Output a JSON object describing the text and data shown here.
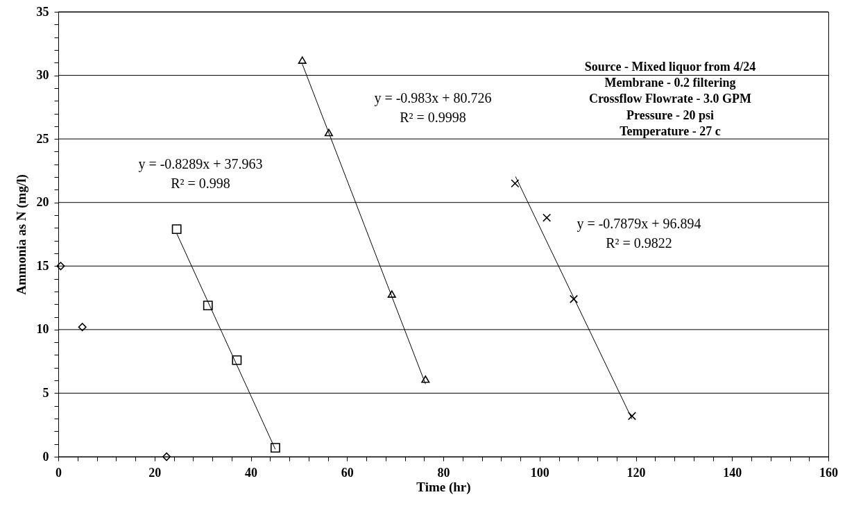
{
  "chart_data": {
    "type": "scatter",
    "xlabel": "Time (hr)",
    "ylabel": "Ammonia as N (mg/l)",
    "xlim": [
      0,
      160
    ],
    "ylim": [
      0,
      35
    ],
    "xticks": [
      0,
      {
        "value": 4,
        "label": null
      },
      {
        "value": 8,
        "label": null
      },
      {
        "value": 12,
        "label": null
      },
      {
        "value": 16,
        "label": null
      },
      20,
      {
        "value": 24,
        "label": null
      },
      {
        "value": 28,
        "label": null
      },
      {
        "value": 32,
        "label": null
      },
      {
        "value": 36,
        "label": null
      },
      40,
      {
        "value": 44,
        "label": null
      },
      {
        "value": 48,
        "label": null
      },
      {
        "value": 52,
        "label": null
      },
      {
        "value": 56,
        "label": null
      },
      60,
      {
        "value": 64,
        "label": null
      },
      {
        "value": 68,
        "label": null
      },
      {
        "value": 72,
        "label": null
      },
      {
        "value": 76,
        "label": null
      },
      80,
      {
        "value": 84,
        "label": null
      },
      {
        "value": 88,
        "label": null
      },
      {
        "value": 92,
        "label": null
      },
      {
        "value": 96,
        "label": null
      },
      100,
      {
        "value": 104,
        "label": null
      },
      {
        "value": 108,
        "label": null
      },
      {
        "value": 112,
        "label": null
      },
      {
        "value": 116,
        "label": null
      },
      120,
      {
        "value": 124,
        "label": null
      },
      {
        "value": 128,
        "label": null
      },
      {
        "value": 132,
        "label": null
      },
      {
        "value": 136,
        "label": null
      },
      140,
      {
        "value": 144,
        "label": null
      },
      {
        "value": 148,
        "label": null
      },
      {
        "value": 152,
        "label": null
      },
      {
        "value": 156,
        "label": null
      },
      160
    ],
    "yticks": [
      0,
      {
        "value": 1,
        "label": null
      },
      {
        "value": 2,
        "label": null
      },
      {
        "value": 3,
        "label": null
      },
      {
        "value": 4,
        "label": null
      },
      5,
      {
        "value": 6,
        "label": null
      },
      {
        "value": 7,
        "label": null
      },
      {
        "value": 8,
        "label": null
      },
      {
        "value": 9,
        "label": null
      },
      10,
      {
        "value": 11,
        "label": null
      },
      {
        "value": 12,
        "label": null
      },
      {
        "value": 13,
        "label": null
      },
      {
        "value": 14,
        "label": null
      },
      15,
      {
        "value": 16,
        "label": null
      },
      {
        "value": 17,
        "label": null
      },
      {
        "value": 18,
        "label": null
      },
      {
        "value": 19,
        "label": null
      },
      20,
      {
        "value": 21,
        "label": null
      },
      {
        "value": 22,
        "label": null
      },
      {
        "value": 23,
        "label": null
      },
      {
        "value": 24,
        "label": null
      },
      25,
      {
        "value": 26,
        "label": null
      },
      {
        "value": 27,
        "label": null
      },
      {
        "value": 28,
        "label": null
      },
      {
        "value": 29,
        "label": null
      },
      30,
      {
        "value": 31,
        "label": null
      },
      {
        "value": 32,
        "label": null
      },
      {
        "value": 33,
        "label": null
      },
      {
        "value": 34,
        "label": null
      },
      35
    ],
    "grid": "y",
    "series": [
      {
        "color": "#000000",
        "marker": "diamond",
        "x": [
          0.5,
          5.0,
          22.5
        ],
        "values": [
          15.0,
          10.2,
          0.0
        ]
      },
      {
        "color": "#000000",
        "marker": "square",
        "x": [
          24.6,
          31.1,
          37.1,
          45.1
        ],
        "values": [
          17.9,
          11.9,
          7.6,
          0.7
        ]
      },
      {
        "color": "#000000",
        "marker": "triangle",
        "x": [
          50.7,
          56.2,
          69.3,
          76.3
        ],
        "values": [
          31.2,
          25.5,
          12.8,
          6.1
        ]
      },
      {
        "color": "#000000",
        "marker": "cross",
        "x": [
          94.9,
          101.5,
          107.1,
          119.2
        ],
        "values": [
          21.5,
          18.8,
          12.4,
          3.2
        ]
      },
      {
        "type": "line",
        "color": "#000000",
        "marker": "none",
        "x": [
          24.6,
          45.1
        ],
        "values": [
          17.57,
          0.58
        ]
      },
      {
        "type": "line",
        "color": "#000000",
        "marker": "none",
        "x": [
          50.7,
          76.3
        ],
        "values": [
          30.89,
          5.72
        ]
      },
      {
        "type": "line",
        "color": "#000000",
        "marker": "none",
        "x": [
          95.0,
          119.2
        ],
        "values": [
          22.04,
          2.97
        ]
      }
    ],
    "annotations": [
      "y = -0.8289x + 37.963\nR² = 0.998",
      "y = -0.983x + 80.726\nR² = 0.9998",
      "y = -0.7879x + 96.894\nR² = 0.9822",
      "Source - Mixed liquor from 4/24\nMembrane - 0.2  filtering\nCrossflow Flowrate - 3.0 GPM\nPressure - 20 psi\nTemperature - 27 c"
    ]
  }
}
